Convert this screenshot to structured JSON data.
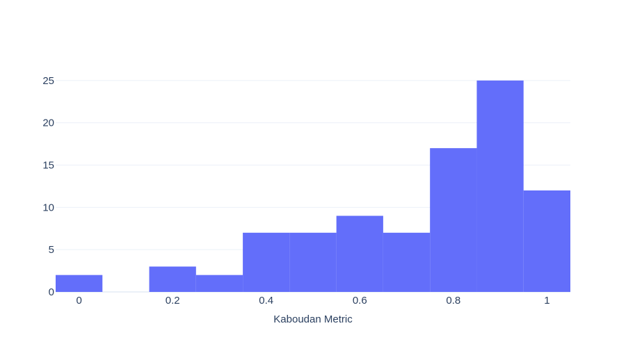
{
  "chart_data": {
    "type": "histogram",
    "xlabel": "Kaboudan Metric",
    "ylabel": "",
    "title": "",
    "bar_color": "#636efa",
    "background": "#ffffff",
    "bin_width": 0.1,
    "bins": [
      {
        "start": -0.05,
        "end": 0.05,
        "count": 2
      },
      {
        "start": 0.05,
        "end": 0.15,
        "count": 0
      },
      {
        "start": 0.15,
        "end": 0.25,
        "count": 3
      },
      {
        "start": 0.25,
        "end": 0.35,
        "count": 2
      },
      {
        "start": 0.35,
        "end": 0.45,
        "count": 7
      },
      {
        "start": 0.45,
        "end": 0.55,
        "count": 7
      },
      {
        "start": 0.55,
        "end": 0.65,
        "count": 9
      },
      {
        "start": 0.65,
        "end": 0.75,
        "count": 7
      },
      {
        "start": 0.75,
        "end": 0.85,
        "count": 17
      },
      {
        "start": 0.85,
        "end": 0.95,
        "count": 25
      },
      {
        "start": 0.95,
        "end": 1.05,
        "count": 12
      }
    ],
    "xlim": [
      -0.05,
      1.05
    ],
    "ylim": [
      0,
      26.3
    ],
    "xticks": [
      {
        "value": 0,
        "label": "0"
      },
      {
        "value": 0.2,
        "label": "0.2"
      },
      {
        "value": 0.4,
        "label": "0.4"
      },
      {
        "value": 0.6,
        "label": "0.6"
      },
      {
        "value": 0.8,
        "label": "0.8"
      },
      {
        "value": 1,
        "label": "1"
      }
    ],
    "yticks": [
      {
        "value": 0,
        "label": "0"
      },
      {
        "value": 5,
        "label": "5"
      },
      {
        "value": 10,
        "label": "10"
      },
      {
        "value": 15,
        "label": "15"
      },
      {
        "value": 20,
        "label": "20"
      },
      {
        "value": 25,
        "label": "25"
      }
    ],
    "grid": true,
    "legend": "none"
  }
}
